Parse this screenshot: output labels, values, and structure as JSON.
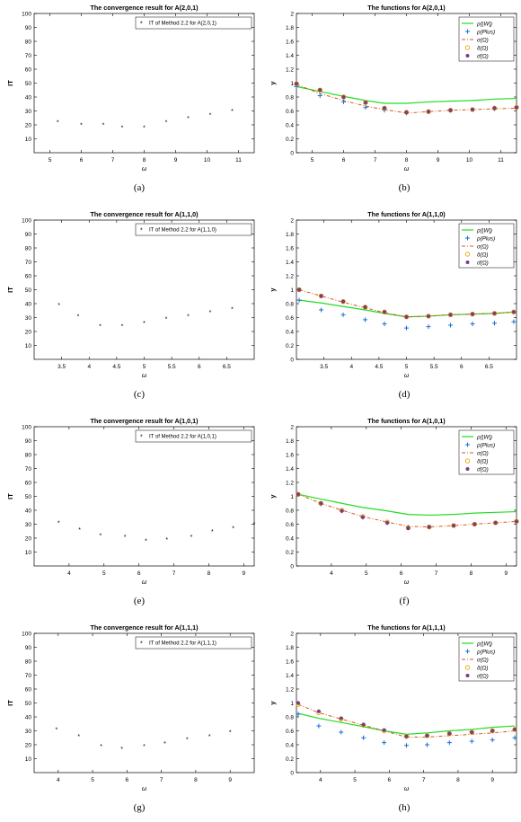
{
  "colors": {
    "it_marker": "#e03030",
    "green": "#22dd22",
    "blue": "#1a6fd6",
    "orange": "#d25a1e",
    "yellow": "#e8a400",
    "purple": "#7a3a8a"
  },
  "legend_labels": {
    "rhoW": "ρ(|W|)",
    "rhoPlus": "ρ(Plus)",
    "sigma": "σ(Ω)",
    "delta": "δ(Ω)",
    "sigmabar": "σ̄(Ω)"
  },
  "chart_data": [
    {
      "id": "a",
      "type": "scatter",
      "title": "The convergence result for A(2,0,1)",
      "ylabel": "IT",
      "xlabel": "ω",
      "caption": "(a)",
      "xlim": [
        4.5,
        11.5
      ],
      "ylim": [
        0,
        100
      ],
      "xticks": [
        5,
        6,
        7,
        8,
        9,
        10,
        11
      ],
      "yticks": [
        10,
        20,
        30,
        40,
        50,
        60,
        70,
        80,
        90,
        100
      ],
      "legend": "IT of Method 2.2 for A(2,0,1)",
      "x": [
        5.25,
        6,
        6.7,
        7.3,
        8,
        8.7,
        9.4,
        10.1,
        10.8
      ],
      "y": [
        22,
        20,
        20,
        18,
        18,
        22,
        25,
        27,
        30
      ]
    },
    {
      "id": "b",
      "type": "line",
      "title": "The functions for A(2,0,1)",
      "ylabel": "y",
      "xlabel": "ω",
      "caption": "(b)",
      "xlim": [
        4.5,
        11.5
      ],
      "ylim": [
        0,
        2
      ],
      "xticks": [
        5,
        6,
        7,
        8,
        9,
        10,
        11
      ],
      "yticks": [
        0,
        0.2,
        0.4,
        0.6,
        0.8,
        1,
        1.2,
        1.4,
        1.6,
        1.8,
        2
      ],
      "x": [
        4.5,
        5.25,
        6,
        6.7,
        7.3,
        8,
        8.7,
        9.4,
        10.1,
        10.8,
        11.5
      ],
      "series": [
        {
          "name": "ρ(|W|)",
          "values": [
            0.95,
            0.88,
            0.81,
            0.75,
            0.71,
            0.71,
            0.73,
            0.74,
            0.75,
            0.77,
            0.78
          ]
        },
        {
          "name": "ρ(Plus)",
          "values": [
            0.95,
            0.82,
            0.73,
            0.65,
            0.61,
            0.57,
            0.59,
            0.61,
            0.62,
            0.63,
            0.65
          ]
        },
        {
          "name": "σ(Ω)",
          "values": [
            0.98,
            0.85,
            0.75,
            0.67,
            0.62,
            0.57,
            0.59,
            0.61,
            0.62,
            0.63,
            0.64
          ]
        },
        {
          "name": "δ(Ω)",
          "values": [
            0.99,
            0.9,
            0.8,
            0.72,
            0.64,
            0.58,
            0.59,
            0.61,
            0.62,
            0.64,
            0.65
          ]
        },
        {
          "name": "σ̄(Ω)",
          "values": [
            0.99,
            0.9,
            0.8,
            0.72,
            0.64,
            0.58,
            0.59,
            0.61,
            0.62,
            0.64,
            0.65
          ]
        }
      ]
    },
    {
      "id": "c",
      "type": "scatter",
      "title": "The convergence result for A(1,1,0)",
      "ylabel": "IT",
      "xlabel": "ω",
      "caption": "(c)",
      "xlim": [
        3,
        7
      ],
      "ylim": [
        0,
        100
      ],
      "xticks": [
        3.5,
        4,
        4.5,
        5,
        5.5,
        6,
        6.5
      ],
      "yticks": [
        10,
        20,
        30,
        40,
        50,
        60,
        70,
        80,
        90,
        100
      ],
      "legend": "IT of Method 2.2 for A(1,1,0)",
      "x": [
        3.45,
        3.8,
        4.2,
        4.6,
        5,
        5.4,
        5.8,
        6.2,
        6.6
      ],
      "y": [
        39,
        31,
        24,
        24,
        26,
        29,
        31,
        34,
        36
      ]
    },
    {
      "id": "d",
      "type": "line",
      "title": "The functions for A(1,1,0)",
      "ylabel": "y",
      "xlabel": "ω",
      "caption": "(d)",
      "xlim": [
        3,
        7
      ],
      "ylim": [
        0,
        2
      ],
      "xticks": [
        3.5,
        4,
        4.5,
        5,
        5.5,
        6,
        6.5
      ],
      "yticks": [
        0,
        0.2,
        0.4,
        0.6,
        0.8,
        1,
        1.2,
        1.4,
        1.6,
        1.8,
        2
      ],
      "x": [
        3.05,
        3.45,
        3.85,
        4.25,
        4.6,
        5,
        5.4,
        5.8,
        6.2,
        6.6,
        6.95
      ],
      "series": [
        {
          "name": "ρ(|W|)",
          "values": [
            0.85,
            0.81,
            0.76,
            0.71,
            0.66,
            0.61,
            0.62,
            0.64,
            0.65,
            0.66,
            0.68
          ]
        },
        {
          "name": "ρ(Plus)",
          "values": [
            0.85,
            0.71,
            0.64,
            0.57,
            0.51,
            0.45,
            0.47,
            0.49,
            0.51,
            0.52,
            0.54
          ]
        },
        {
          "name": "σ(Ω)",
          "values": [
            1.0,
            0.91,
            0.82,
            0.74,
            0.67,
            0.61,
            0.62,
            0.64,
            0.65,
            0.66,
            0.68
          ]
        },
        {
          "name": "δ(Ω)",
          "values": [
            1.0,
            0.91,
            0.83,
            0.75,
            0.68,
            0.61,
            0.62,
            0.64,
            0.65,
            0.66,
            0.68
          ]
        },
        {
          "name": "σ̄(Ω)",
          "values": [
            1.0,
            0.91,
            0.83,
            0.75,
            0.68,
            0.61,
            0.62,
            0.64,
            0.65,
            0.66,
            0.68
          ]
        }
      ]
    },
    {
      "id": "e",
      "type": "scatter",
      "title": "The convergence result for A(1,0,1)",
      "ylabel": "IT",
      "xlabel": "ω",
      "caption": "(e)",
      "xlim": [
        3,
        9.3
      ],
      "ylim": [
        0,
        100
      ],
      "xticks": [
        4,
        5,
        6,
        7,
        8,
        9
      ],
      "yticks": [
        10,
        20,
        30,
        40,
        50,
        60,
        70,
        80,
        90,
        100
      ],
      "legend": "IT of Method 2.2 for A(1,0,1)",
      "x": [
        3.7,
        4.3,
        4.9,
        5.6,
        6.2,
        6.8,
        7.5,
        8.1,
        8.7,
        9.3
      ],
      "y": [
        31,
        26,
        22,
        21,
        18,
        19,
        21,
        25,
        27,
        30
      ]
    },
    {
      "id": "f",
      "type": "line",
      "title": "The functions for A(1,0,1)",
      "ylabel": "y",
      "xlabel": "ω",
      "caption": "(f)",
      "xlim": [
        3,
        9.3
      ],
      "ylim": [
        0,
        2
      ],
      "xticks": [
        4,
        5,
        6,
        7,
        8,
        9
      ],
      "yticks": [
        0,
        0.2,
        0.4,
        0.6,
        0.8,
        1,
        1.2,
        1.4,
        1.6,
        1.8,
        2
      ],
      "x": [
        3.05,
        3.7,
        4.3,
        4.9,
        5.6,
        6.2,
        6.8,
        7.5,
        8.1,
        8.7,
        9.3
      ],
      "series": [
        {
          "name": "ρ(|W|)",
          "values": [
            1.03,
            0.96,
            0.9,
            0.84,
            0.79,
            0.74,
            0.73,
            0.74,
            0.76,
            0.77,
            0.78
          ]
        },
        {
          "name": "ρ(Plus)",
          "values": [
            1.03,
            0.89,
            0.79,
            0.7,
            0.62,
            0.56,
            0.56,
            0.58,
            0.6,
            0.62,
            0.64
          ]
        },
        {
          "name": "σ(Ω)",
          "values": [
            1.03,
            0.9,
            0.8,
            0.71,
            0.63,
            0.57,
            0.56,
            0.58,
            0.6,
            0.62,
            0.64
          ]
        },
        {
          "name": "δ(Ω)",
          "values": [
            1.03,
            0.9,
            0.8,
            0.71,
            0.63,
            0.55,
            0.56,
            0.58,
            0.6,
            0.62,
            0.64
          ]
        },
        {
          "name": "σ̄(Ω)",
          "values": [
            1.03,
            0.9,
            0.79,
            0.7,
            0.62,
            0.54,
            0.56,
            0.58,
            0.6,
            0.62,
            0.64
          ]
        }
      ]
    },
    {
      "id": "g",
      "type": "scatter",
      "title": "The convergence result for A(1,1,1)",
      "ylabel": "IT",
      "xlabel": "ω",
      "caption": "(g)",
      "xlim": [
        3.3,
        9.7
      ],
      "ylim": [
        0,
        100
      ],
      "xticks": [
        4,
        5,
        6,
        7,
        8,
        9
      ],
      "yticks": [
        10,
        20,
        30,
        40,
        50,
        60,
        70,
        80,
        90,
        100
      ],
      "legend": "IT of Method 2.2 for A(1,1,1)",
      "x": [
        3.95,
        4.6,
        5.25,
        5.85,
        6.5,
        7.1,
        7.75,
        8.4,
        9
      ],
      "y": [
        31,
        26,
        19,
        17,
        19,
        21,
        24,
        26,
        29
      ]
    },
    {
      "id": "h",
      "type": "line",
      "title": "The functions for A(1,1,1)",
      "ylabel": "y",
      "xlabel": "ω",
      "caption": "(h)",
      "xlim": [
        3.3,
        9.7
      ],
      "ylim": [
        0,
        2
      ],
      "xticks": [
        4,
        5,
        6,
        7,
        8,
        9
      ],
      "yticks": [
        0,
        0.2,
        0.4,
        0.6,
        0.8,
        1,
        1.2,
        1.4,
        1.6,
        1.8,
        2
      ],
      "x": [
        3.35,
        3.95,
        4.6,
        5.25,
        5.85,
        6.5,
        7.1,
        7.75,
        8.4,
        9,
        9.65
      ],
      "series": [
        {
          "name": "ρ(|W|)",
          "values": [
            0.85,
            0.78,
            0.72,
            0.66,
            0.6,
            0.55,
            0.57,
            0.6,
            0.62,
            0.65,
            0.67
          ]
        },
        {
          "name": "ρ(Plus)",
          "values": [
            0.84,
            0.67,
            0.58,
            0.5,
            0.43,
            0.39,
            0.4,
            0.43,
            0.45,
            0.47,
            0.5
          ]
        },
        {
          "name": "σ(Ω)",
          "values": [
            0.98,
            0.86,
            0.77,
            0.68,
            0.6,
            0.51,
            0.51,
            0.53,
            0.55,
            0.57,
            0.6
          ]
        },
        {
          "name": "δ(Ω)",
          "values": [
            0.98,
            0.86,
            0.77,
            0.68,
            0.6,
            0.52,
            0.53,
            0.56,
            0.58,
            0.6,
            0.62
          ]
        },
        {
          "name": "σ̄(Ω)",
          "values": [
            1.0,
            0.88,
            0.78,
            0.69,
            0.61,
            0.52,
            0.53,
            0.56,
            0.58,
            0.6,
            0.62
          ]
        }
      ]
    }
  ]
}
